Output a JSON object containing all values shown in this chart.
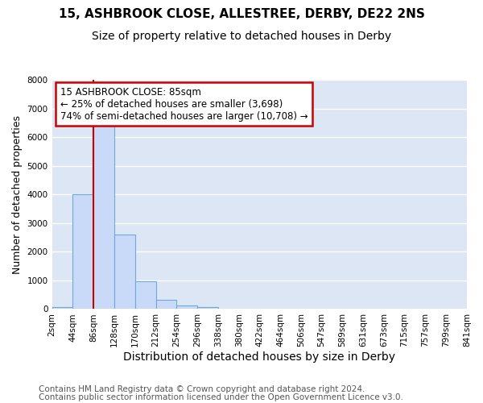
{
  "title": "15, ASHBROOK CLOSE, ALLESTREE, DERBY, DE22 2NS",
  "subtitle": "Size of property relative to detached houses in Derby",
  "xlabel": "Distribution of detached houses by size in Derby",
  "ylabel": "Number of detached properties",
  "bar_values": [
    70,
    4000,
    6600,
    2600,
    960,
    330,
    130,
    60,
    10,
    0,
    0,
    0,
    0,
    0,
    0,
    0,
    0,
    0,
    0,
    0
  ],
  "bin_edges": [
    2,
    44,
    86,
    128,
    170,
    212,
    254,
    296,
    338,
    380,
    422,
    464,
    506,
    547,
    589,
    631,
    673,
    715,
    757,
    799,
    841
  ],
  "tick_labels": [
    "2sqm",
    "44sqm",
    "86sqm",
    "128sqm",
    "170sqm",
    "212sqm",
    "254sqm",
    "296sqm",
    "338sqm",
    "380sqm",
    "422sqm",
    "464sqm",
    "506sqm",
    "547sqm",
    "589sqm",
    "631sqm",
    "673sqm",
    "715sqm",
    "757sqm",
    "799sqm",
    "841sqm"
  ],
  "bar_facecolor": "#c9daf8",
  "bar_edgecolor": "#6fa8dc",
  "bar_linewidth": 0.8,
  "ylim": [
    0,
    8000
  ],
  "yticks": [
    0,
    1000,
    2000,
    3000,
    4000,
    5000,
    6000,
    7000,
    8000
  ],
  "vline_x": 85,
  "vline_color": "#cc0000",
  "vline_linewidth": 1.5,
  "annotation_box_text": "15 ASHBROOK CLOSE: 85sqm\n← 25% of detached houses are smaller (3,698)\n74% of semi-detached houses are larger (10,708) →",
  "annotation_box_edgecolor": "#cc0000",
  "annotation_box_facecolor": "white",
  "plot_bg_color": "#dce6f5",
  "figure_bg_color": "#ffffff",
  "grid_color": "#ffffff",
  "footer_line1": "Contains HM Land Registry data © Crown copyright and database right 2024.",
  "footer_line2": "Contains public sector information licensed under the Open Government Licence v3.0.",
  "title_fontsize": 11,
  "subtitle_fontsize": 10,
  "xlabel_fontsize": 10,
  "ylabel_fontsize": 9,
  "tick_fontsize": 7.5,
  "annotation_fontsize": 8.5,
  "footer_fontsize": 7.5
}
